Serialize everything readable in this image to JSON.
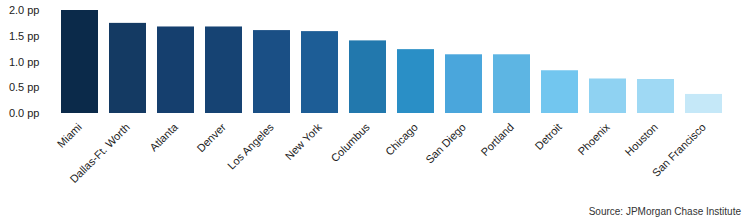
{
  "chart_data": {
    "type": "bar",
    "categories": [
      "Miami",
      "Dallas-Ft. Worth",
      "Atlanta",
      "Denver",
      "Los Angeles",
      "New York",
      "Columbus",
      "Chicago",
      "San Diego",
      "Portland",
      "Detroit",
      "Phoenix",
      "Houston",
      "San Francisco"
    ],
    "values": [
      2.0,
      1.75,
      1.68,
      1.68,
      1.61,
      1.59,
      1.41,
      1.24,
      1.14,
      1.14,
      0.83,
      0.67,
      0.66,
      0.37
    ],
    "colors": [
      "#0b2a4a",
      "#143a63",
      "#153f6e",
      "#164373",
      "#1a4f85",
      "#1d5d96",
      "#2278ad",
      "#2a8fc6",
      "#4aa6dc",
      "#5db5e3",
      "#72c6ef",
      "#8fd2f2",
      "#9fd9f4",
      "#c5e8f8"
    ],
    "ylim": [
      0,
      2.0
    ],
    "yticks": [
      {
        "value": 0,
        "label": "0.0 pp"
      },
      {
        "value": 0.5,
        "label": "0.5 pp"
      },
      {
        "value": 1.0,
        "label": "1.0 pp"
      },
      {
        "value": 1.5,
        "label": "1.5 pp"
      },
      {
        "value": 2.0,
        "label": "2.0 pp"
      }
    ],
    "grid": false,
    "caption": "Source: JPMorgan Chase Institute"
  }
}
